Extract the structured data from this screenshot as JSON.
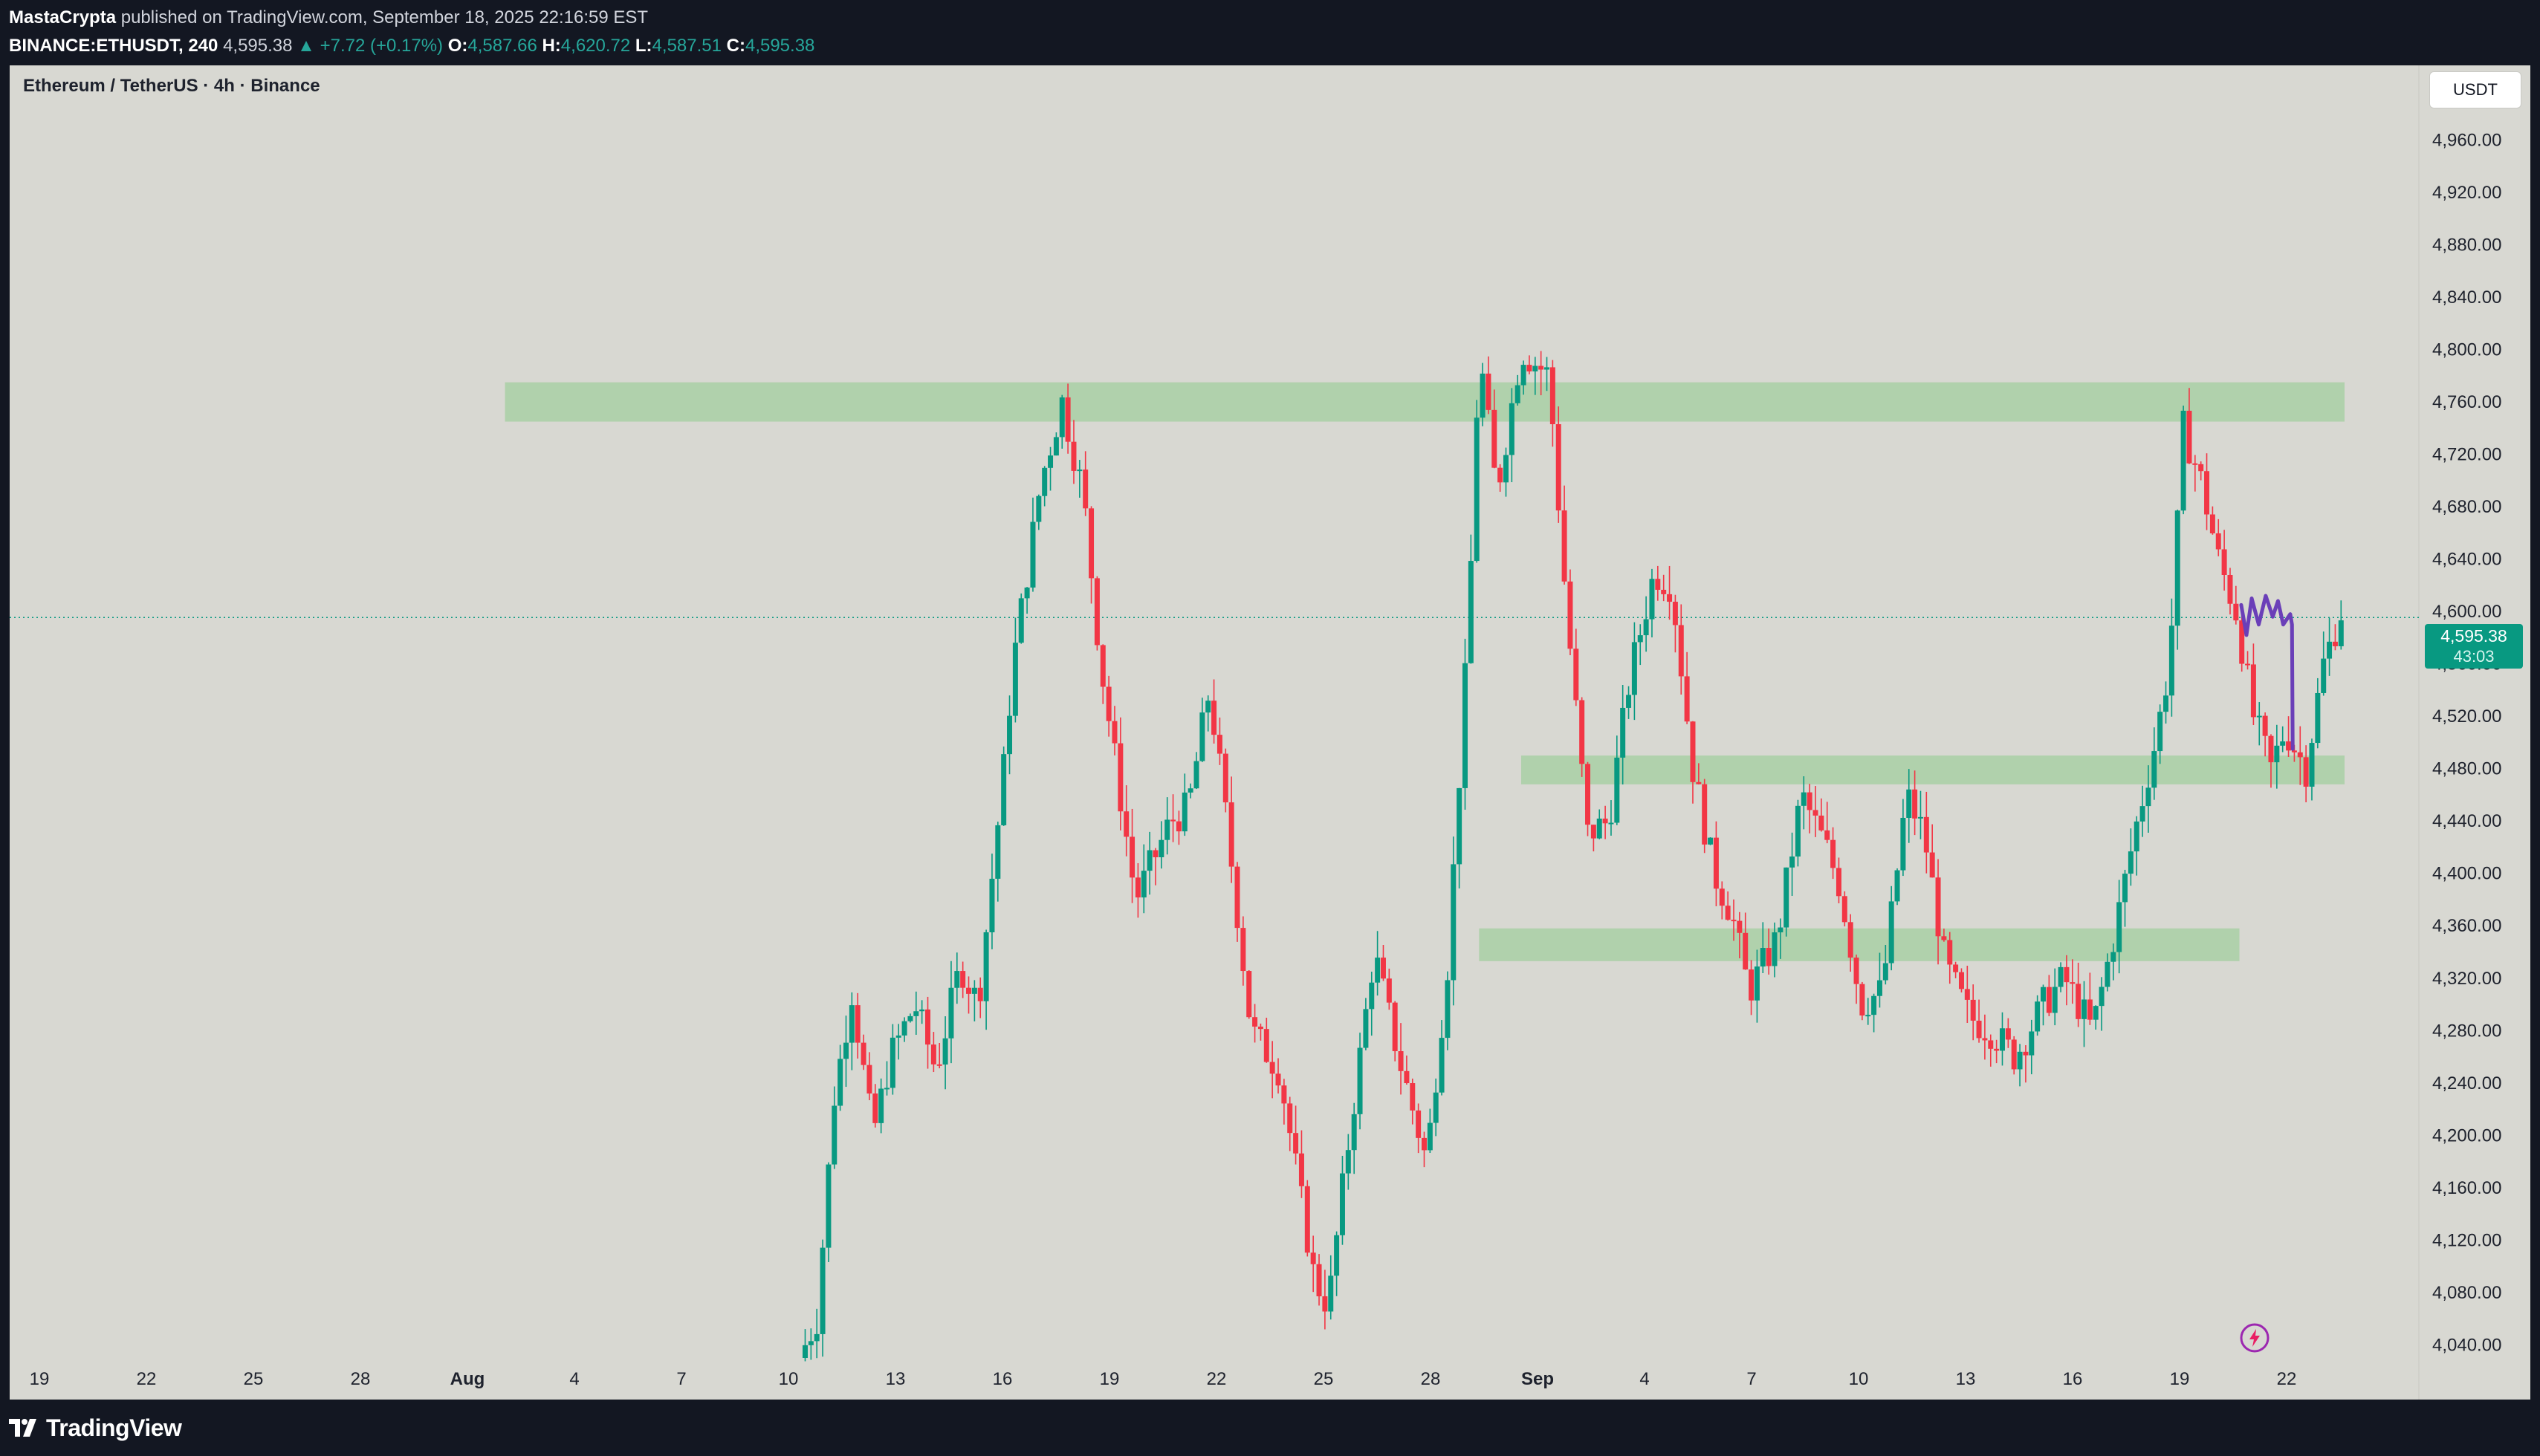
{
  "header": {
    "author": "MastaCrypta",
    "published_text": "published on TradingView.com, September 18, 2025 22:16:59 EST",
    "symbol": "BINANCE:ETHUSDT, 240",
    "last": "4,595.38",
    "change": "▲ +7.72 (+0.17%)",
    "open_label": "O:",
    "open": "4,587.66",
    "high_label": "H:",
    "high": "4,620.72",
    "low_label": "L:",
    "low": "4,587.51",
    "close_label": "C:",
    "close": "4,595.38"
  },
  "chart_title": "Ethereum / TetherUS · 4h · Binance",
  "currency_button": "USDT",
  "price_tag": {
    "price": "4,595.38",
    "countdown": "43:03"
  },
  "footer": {
    "brand": "TradingView"
  },
  "icons": {
    "logo": "tradingview-logo-icon",
    "snapshot": "lightning-bolt-icon"
  },
  "colors": {
    "background": "#131722",
    "chart_bg": "#d8d8d2",
    "up": "#089981",
    "down": "#f23645",
    "zone": "#a3cf9f",
    "projection": "#6a3fb8"
  },
  "chart_data": {
    "type": "candlestick",
    "title": "Ethereum / TetherUS · 4h · Binance",
    "timeframe": "4h",
    "x_tick_labels": [
      "19",
      "22",
      "25",
      "28",
      "Aug",
      "4",
      "7",
      "10",
      "13",
      "16",
      "19",
      "22",
      "25",
      "28",
      "Sep",
      "4",
      "7",
      "10",
      "13",
      "16",
      "19",
      "22"
    ],
    "y_ticks": [
      4040,
      4080,
      4120,
      4160,
      4200,
      4240,
      4280,
      4320,
      4360,
      4400,
      4440,
      4480,
      4520,
      4560,
      4600,
      4640,
      4680,
      4720,
      4760,
      4800,
      4840,
      4880,
      4920,
      4960,
      5000
    ],
    "ylim": [
      4030,
      5000
    ],
    "xlim": [
      0,
      66
    ],
    "current_price": 4595.38,
    "last_candle": {
      "open": 4587.66,
      "high": 4620.72,
      "low": 4587.51,
      "close": 4595.38
    },
    "path_points": [
      [
        21.9,
        4030
      ],
      [
        22.4,
        4060
      ],
      [
        22.9,
        4230
      ],
      [
        23.4,
        4310
      ],
      [
        24.0,
        4200
      ],
      [
        24.5,
        4260
      ],
      [
        25.2,
        4300
      ],
      [
        25.8,
        4250
      ],
      [
        26.5,
        4330
      ],
      [
        27.0,
        4300
      ],
      [
        27.7,
        4470
      ],
      [
        28.0,
        4560
      ],
      [
        28.8,
        4700
      ],
      [
        29.4,
        4760
      ],
      [
        30.0,
        4690
      ],
      [
        30.5,
        4560
      ],
      [
        31.0,
        4470
      ],
      [
        31.5,
        4380
      ],
      [
        32.5,
        4440
      ],
      [
        33.0,
        4450
      ],
      [
        33.6,
        4540
      ],
      [
        34.0,
        4460
      ],
      [
        34.8,
        4280
      ],
      [
        35.6,
        4250
      ],
      [
        36.6,
        4090
      ],
      [
        37.0,
        4070
      ],
      [
        37.5,
        4180
      ],
      [
        38.3,
        4340
      ],
      [
        39.0,
        4260
      ],
      [
        39.8,
        4180
      ],
      [
        40.4,
        4330
      ],
      [
        41.0,
        4590
      ],
      [
        41.3,
        4800
      ],
      [
        41.8,
        4690
      ],
      [
        42.5,
        4800
      ],
      [
        43.3,
        4780
      ],
      [
        43.8,
        4600
      ],
      [
        44.4,
        4430
      ],
      [
        45.0,
        4440
      ],
      [
        45.6,
        4550
      ],
      [
        46.3,
        4630
      ],
      [
        46.8,
        4620
      ],
      [
        47.4,
        4480
      ],
      [
        48.0,
        4400
      ],
      [
        48.5,
        4370
      ],
      [
        49.0,
        4310
      ],
      [
        49.8,
        4350
      ],
      [
        50.5,
        4460
      ],
      [
        51.2,
        4420
      ],
      [
        51.6,
        4390
      ],
      [
        52.2,
        4300
      ],
      [
        52.8,
        4310
      ],
      [
        53.5,
        4460
      ],
      [
        54.0,
        4430
      ],
      [
        54.6,
        4330
      ],
      [
        55.3,
        4290
      ],
      [
        55.9,
        4280
      ],
      [
        56.6,
        4260
      ],
      [
        57.4,
        4300
      ],
      [
        58.0,
        4320
      ],
      [
        58.8,
        4280
      ],
      [
        59.4,
        4350
      ],
      [
        60.0,
        4430
      ],
      [
        60.6,
        4500
      ],
      [
        61.0,
        4560
      ],
      [
        61.4,
        4740
      ],
      [
        61.9,
        4700
      ],
      [
        62.4,
        4640
      ],
      [
        62.9,
        4600
      ],
      [
        63.4,
        4520
      ],
      [
        63.9,
        4480
      ],
      [
        64.3,
        4510
      ],
      [
        64.9,
        4480
      ],
      [
        65.4,
        4560
      ],
      [
        65.9,
        4600
      ],
      [
        66.0,
        4595
      ]
    ],
    "zones": [
      {
        "x_from": 13.5,
        "x_to": 66,
        "y_low": 4745,
        "y_high": 4775
      },
      {
        "x_from": 42.5,
        "x_to": 66,
        "y_low": 4468,
        "y_high": 4490
      },
      {
        "x_from": 41.3,
        "x_to": 63.0,
        "y_low": 4333,
        "y_high": 4358
      }
    ],
    "projection": [
      [
        63.05,
        4605
      ],
      [
        63.2,
        4582
      ],
      [
        63.35,
        4610
      ],
      [
        63.55,
        4590
      ],
      [
        63.75,
        4612
      ],
      [
        63.95,
        4596
      ],
      [
        64.1,
        4608
      ],
      [
        64.25,
        4590
      ],
      [
        64.45,
        4598
      ],
      [
        64.5,
        4590
      ],
      [
        64.52,
        4495
      ]
    ]
  }
}
